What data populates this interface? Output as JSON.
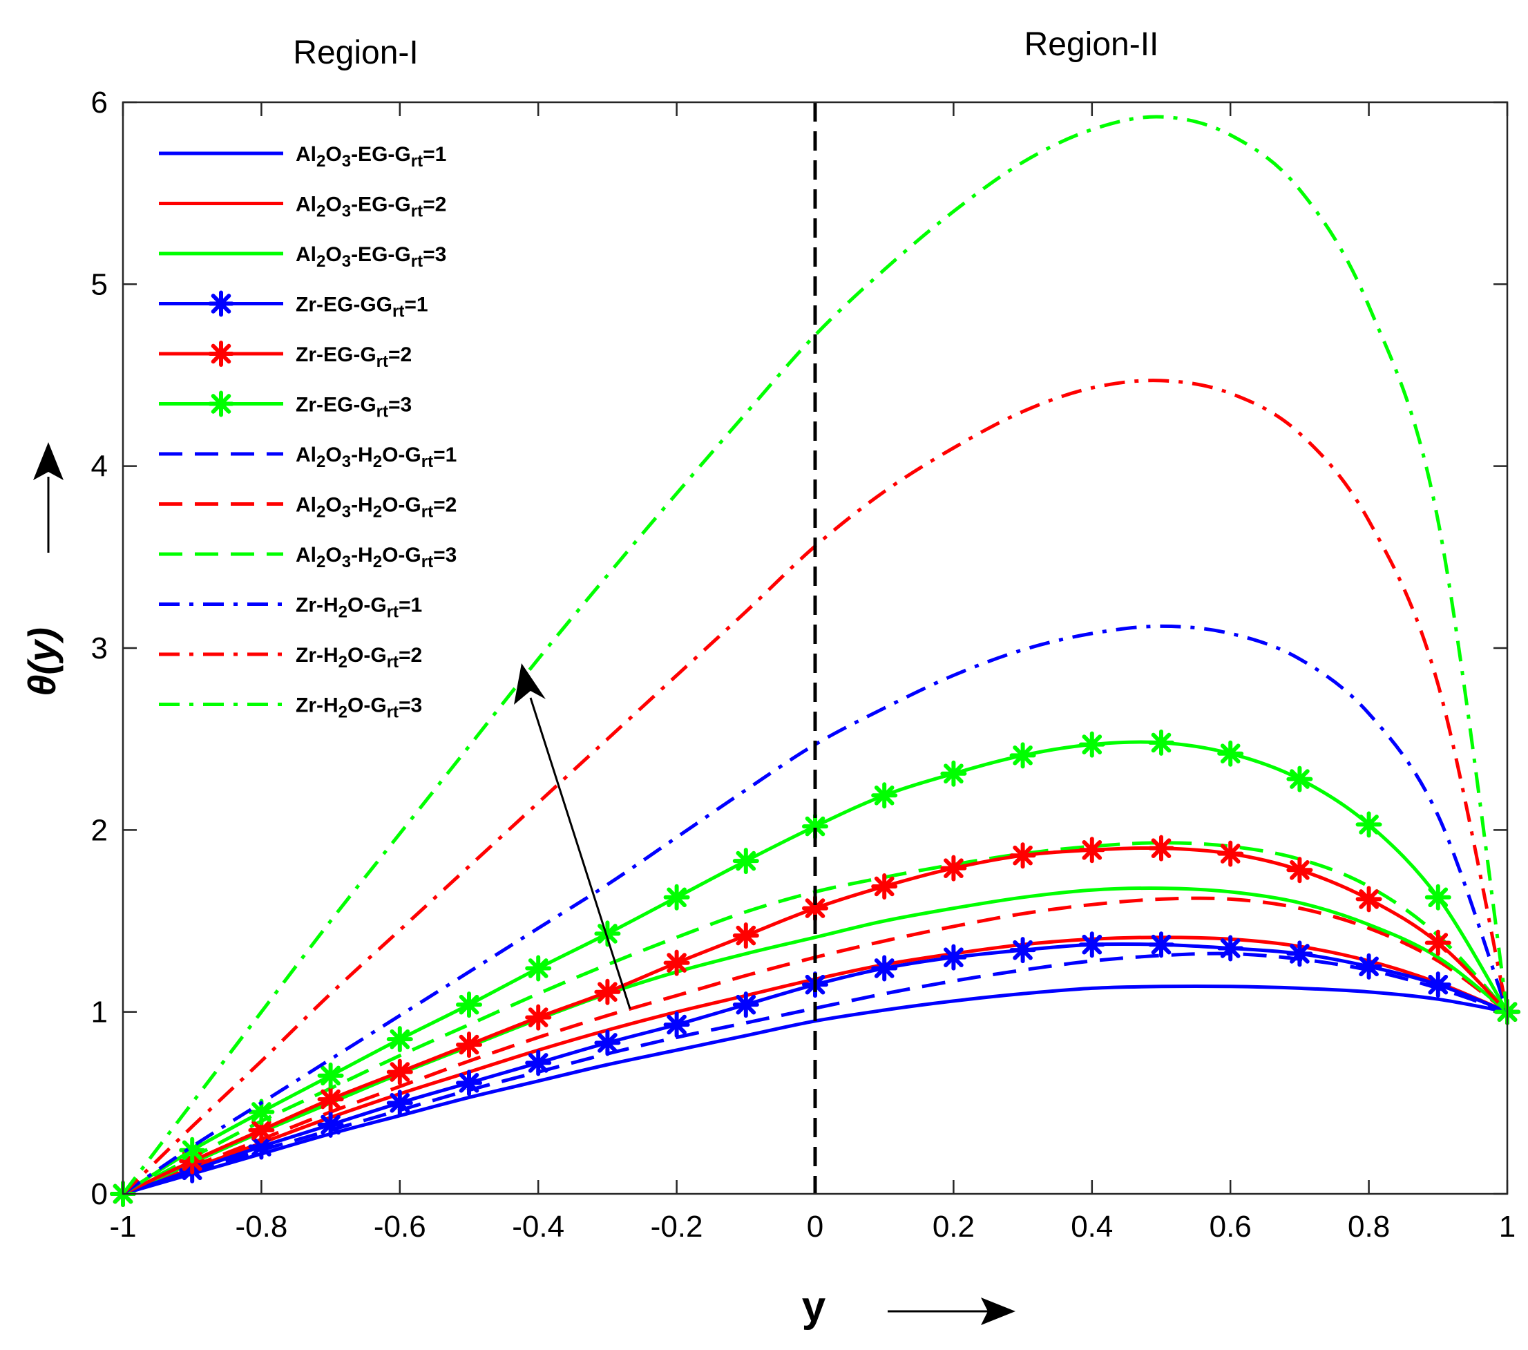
{
  "chart_data": {
    "type": "line",
    "title": "",
    "xlabel": "y",
    "ylabel": "θ(y)",
    "xlim": [
      -1,
      1
    ],
    "ylim": [
      0,
      6
    ],
    "xticks": [
      -1,
      -0.8,
      -0.6,
      -0.4,
      -0.2,
      0,
      0.2,
      0.4,
      0.6,
      0.8,
      1
    ],
    "yticks": [
      0,
      1,
      2,
      3,
      4,
      5,
      6
    ],
    "xtick_labels": [
      "-1",
      "-0.8",
      "-0.6",
      "-0.4",
      "-0.2",
      "0",
      "0.2",
      "0.4",
      "0.6",
      "0.8",
      "1"
    ],
    "ytick_labels": [
      "0",
      "1",
      "2",
      "3",
      "4",
      "5",
      "6"
    ],
    "regions": [
      "Region-I",
      "Region-II"
    ],
    "interface_x": 0,
    "legend_position": "top-left",
    "annotations": [
      "arrow indicating increase with G_rt"
    ],
    "x": [
      -1,
      -0.9,
      -0.8,
      -0.7,
      -0.6,
      -0.5,
      -0.4,
      -0.3,
      -0.2,
      -0.1,
      0,
      0.1,
      0.2,
      0.3,
      0.4,
      0.5,
      0.6,
      0.7,
      0.8,
      0.9,
      1
    ],
    "series": [
      {
        "name": "Al2O3-EG-Grt=1",
        "base": "Al",
        "sub1": "2",
        "mid": "O",
        "sub2": "3",
        "tail": "-EG-G",
        "rt": "rt",
        "end": "=1",
        "color": "#0000ff",
        "style": "solid",
        "marker": false,
        "values": [
          0,
          0.11,
          0.22,
          0.33,
          0.43,
          0.53,
          0.62,
          0.71,
          0.79,
          0.87,
          0.95,
          1.01,
          1.06,
          1.1,
          1.13,
          1.14,
          1.14,
          1.13,
          1.11,
          1.07,
          1.0
        ]
      },
      {
        "name": "Al2O3-EG-Grt=2",
        "base": "Al",
        "sub1": "2",
        "mid": "O",
        "sub2": "3",
        "tail": "-EG-G",
        "rt": "rt",
        "end": "=2",
        "color": "#ff0000",
        "style": "solid",
        "marker": false,
        "values": [
          0,
          0.14,
          0.28,
          0.42,
          0.55,
          0.67,
          0.79,
          0.9,
          1.0,
          1.09,
          1.18,
          1.26,
          1.32,
          1.37,
          1.4,
          1.41,
          1.4,
          1.36,
          1.28,
          1.16,
          1.0
        ]
      },
      {
        "name": "Al2O3-EG-Grt=3",
        "base": "Al",
        "sub1": "2",
        "mid": "O",
        "sub2": "3",
        "tail": "-EG-G",
        "rt": "rt",
        "end": "=3",
        "color": "#00ff00",
        "style": "solid",
        "marker": false,
        "values": [
          0,
          0.17,
          0.34,
          0.5,
          0.66,
          0.81,
          0.96,
          1.1,
          1.22,
          1.32,
          1.41,
          1.5,
          1.57,
          1.63,
          1.67,
          1.68,
          1.66,
          1.6,
          1.48,
          1.3,
          1.0
        ]
      },
      {
        "name": "Zr-EG-GGrt=1",
        "base": "Zr-EG-GG",
        "sub1": "",
        "mid": "",
        "sub2": "",
        "tail": "",
        "rt": "rt",
        "end": "=1",
        "color": "#0000ff",
        "style": "solid",
        "marker": true,
        "values": [
          0,
          0.13,
          0.26,
          0.38,
          0.5,
          0.61,
          0.72,
          0.83,
          0.93,
          1.04,
          1.15,
          1.24,
          1.3,
          1.34,
          1.37,
          1.37,
          1.35,
          1.32,
          1.25,
          1.15,
          1.0
        ]
      },
      {
        "name": "Zr-EG-Grt=2",
        "base": "Zr-EG-G",
        "sub1": "",
        "mid": "",
        "sub2": "",
        "tail": "",
        "rt": "rt",
        "end": "=2",
        "color": "#ff0000",
        "style": "solid",
        "marker": true,
        "values": [
          0,
          0.18,
          0.35,
          0.52,
          0.67,
          0.82,
          0.97,
          1.11,
          1.27,
          1.42,
          1.57,
          1.69,
          1.79,
          1.86,
          1.89,
          1.9,
          1.87,
          1.78,
          1.62,
          1.38,
          1.0
        ]
      },
      {
        "name": "Zr-EG-Grt=3",
        "base": "Zr-EG-G",
        "sub1": "",
        "mid": "",
        "sub2": "",
        "tail": "",
        "rt": "rt",
        "end": "=3",
        "color": "#00ff00",
        "style": "solid",
        "marker": true,
        "values": [
          0,
          0.24,
          0.45,
          0.65,
          0.85,
          1.04,
          1.24,
          1.43,
          1.63,
          1.83,
          2.02,
          2.19,
          2.31,
          2.41,
          2.47,
          2.48,
          2.42,
          2.28,
          2.03,
          1.63,
          1.0
        ]
      },
      {
        "name": "Al2O3-H2O-Grt=1",
        "base": "Al",
        "sub1": "2",
        "mid": "O",
        "sub2": "3",
        "tail": "-H",
        "sub3": "2",
        "tail2": "O-G",
        "rt": "rt",
        "end": "=1",
        "color": "#0000ff",
        "style": "dashed",
        "marker": false,
        "values": [
          0,
          0.12,
          0.24,
          0.35,
          0.46,
          0.57,
          0.67,
          0.77,
          0.86,
          0.94,
          1.02,
          1.1,
          1.17,
          1.23,
          1.28,
          1.31,
          1.32,
          1.29,
          1.23,
          1.13,
          1.0
        ]
      },
      {
        "name": "Al2O3-H2O-Grt=2",
        "base": "Al",
        "sub1": "2",
        "mid": "O",
        "sub2": "3",
        "tail": "-H",
        "sub3": "2",
        "tail2": "O-G",
        "rt": "rt",
        "end": "=2",
        "color": "#ff0000",
        "style": "dashed",
        "marker": false,
        "values": [
          0,
          0.15,
          0.3,
          0.45,
          0.59,
          0.73,
          0.86,
          0.98,
          1.09,
          1.2,
          1.3,
          1.39,
          1.47,
          1.54,
          1.59,
          1.62,
          1.62,
          1.57,
          1.46,
          1.28,
          1.0
        ]
      },
      {
        "name": "Al2O3-H2O-Grt=3",
        "base": "Al",
        "sub1": "2",
        "mid": "O",
        "sub2": "3",
        "tail": "-H",
        "sub3": "2",
        "tail2": "O-G",
        "rt": "rt",
        "end": "=3",
        "color": "#00ff00",
        "style": "dashed",
        "marker": false,
        "values": [
          0,
          0.2,
          0.4,
          0.58,
          0.76,
          0.93,
          1.1,
          1.26,
          1.41,
          1.55,
          1.66,
          1.74,
          1.81,
          1.87,
          1.91,
          1.93,
          1.91,
          1.84,
          1.69,
          1.42,
          1.0
        ]
      },
      {
        "name": "Zr-H2O-Grt=1",
        "base": "Zr-H",
        "sub1": "2",
        "mid": "O-G",
        "sub2": "",
        "tail": "",
        "rt": "rt",
        "end": "=1",
        "color": "#0000ff",
        "style": "dashdot",
        "marker": false,
        "values": [
          0,
          0.26,
          0.5,
          0.74,
          0.98,
          1.22,
          1.46,
          1.7,
          1.96,
          2.22,
          2.47,
          2.67,
          2.85,
          2.99,
          3.08,
          3.12,
          3.08,
          2.94,
          2.64,
          2.08,
          1.0
        ]
      },
      {
        "name": "Zr-H2O-Grt=2",
        "base": "Zr-H",
        "sub1": "2",
        "mid": "O-G",
        "sub2": "",
        "tail": "",
        "rt": "rt",
        "end": "=2",
        "color": "#ff0000",
        "style": "dashdot",
        "marker": false,
        "values": [
          0,
          0.37,
          0.73,
          1.1,
          1.45,
          1.8,
          2.15,
          2.5,
          2.85,
          3.2,
          3.56,
          3.86,
          4.1,
          4.3,
          4.43,
          4.47,
          4.4,
          4.18,
          3.7,
          2.8,
          1.0
        ]
      },
      {
        "name": "Zr-H2O-Grt=3",
        "base": "Zr-H",
        "sub1": "2",
        "mid": "O-G",
        "sub2": "",
        "tail": "",
        "rt": "rt",
        "end": "=3",
        "color": "#00ff00",
        "style": "dashdot",
        "marker": false,
        "values": [
          0,
          0.5,
          1.0,
          1.5,
          1.98,
          2.46,
          2.94,
          3.4,
          3.85,
          4.29,
          4.72,
          5.08,
          5.4,
          5.67,
          5.85,
          5.92,
          5.82,
          5.52,
          4.88,
          3.7,
          1.0
        ]
      }
    ]
  }
}
